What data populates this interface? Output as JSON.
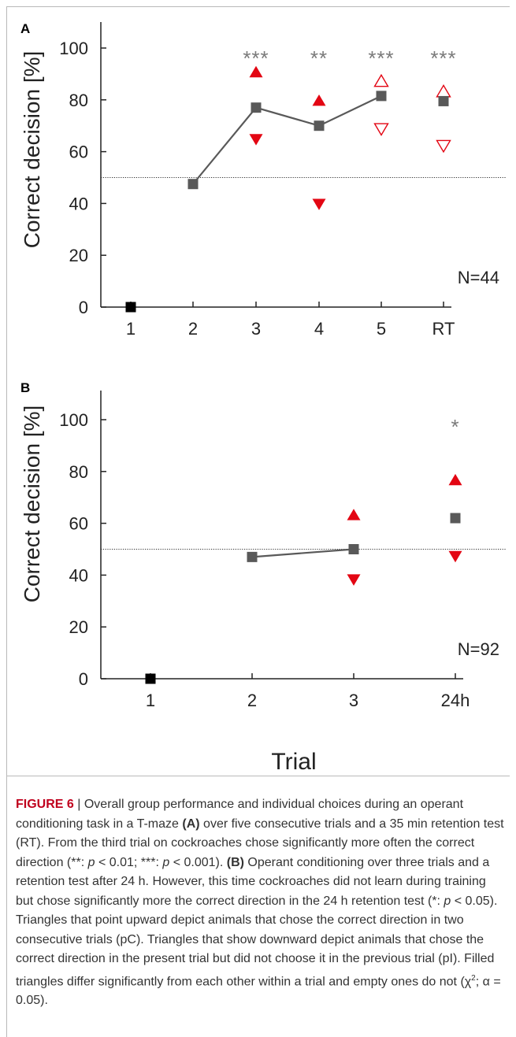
{
  "colors": {
    "mean": "#595959",
    "first": "#000000",
    "triangle": "#e30613",
    "asterisk": "#7a7a7a",
    "axis": "#222222",
    "caption_label": "#c0001d"
  },
  "chart_data": [
    {
      "panel": "A",
      "type": "line",
      "ylabel": "Correct decision [%]",
      "xlabel": "",
      "ylim": [
        0,
        110
      ],
      "yticks": [
        0,
        20,
        40,
        60,
        80,
        100
      ],
      "categories": [
        "1",
        "2",
        "3",
        "4",
        "5",
        "RT"
      ],
      "n_label": "N=44",
      "chance_line": 50,
      "mean": [
        0,
        47.5,
        77,
        70,
        81.5,
        79.5
      ],
      "connected": [
        1,
        2,
        3,
        4
      ],
      "pc": [
        null,
        null,
        90.5,
        79.5,
        87,
        83
      ],
      "pi": [
        null,
        null,
        65,
        40,
        69,
        62.5
      ],
      "filled": [
        null,
        null,
        true,
        true,
        false,
        false
      ],
      "significance": [
        "",
        "",
        "***",
        "**",
        "***",
        "***"
      ]
    },
    {
      "panel": "B",
      "type": "line",
      "ylabel": "Correct decision [%]",
      "xlabel": "Trial",
      "ylim": [
        0,
        110
      ],
      "yticks": [
        0,
        20,
        40,
        60,
        80,
        100
      ],
      "categories": [
        "1",
        "2",
        "3",
        "24h"
      ],
      "n_label": "N=92",
      "chance_line": 50,
      "mean": [
        0,
        47,
        50,
        62
      ],
      "connected": [
        1,
        2
      ],
      "pc": [
        null,
        null,
        63,
        76.5
      ],
      "pi": [
        null,
        null,
        38.5,
        47.5
      ],
      "filled": [
        null,
        null,
        true,
        true
      ],
      "significance": [
        "",
        "",
        "",
        "*"
      ]
    }
  ],
  "caption": {
    "label": "FIGURE 6",
    "separator": " | ",
    "p1": "Overall group performance and individual choices during an operant conditioning task in a T-maze ",
    "ref_a": "(A)",
    "p2": " over five consecutive trials and a 35 min retention test (RT). From the third trial on cockroaches chose significantly more often the correct direction (**: ",
    "p_var1": "p",
    "p3": " < 0.01; ***: ",
    "p_var2": "p",
    "p4": " < 0.001). ",
    "ref_b": "(B)",
    "p5": " Operant conditioning over three trials and a retention test after 24 h. However, this time cockroaches did not learn during training but chose significantly more the correct direction in the 24 h retention test (*: ",
    "p_var3": "p",
    "p6": " < 0.05). Triangles that point upward depict animals that chose the correct direction in two consecutive trials (pC). Triangles that show downward depict animals that chose the correct direction in the present trial but did not choose it in the previous trial (pI). Filled triangles differ significantly from each other within a trial and empty ones do not (χ",
    "sup": "2",
    "p7": "; α = 0.05)."
  }
}
